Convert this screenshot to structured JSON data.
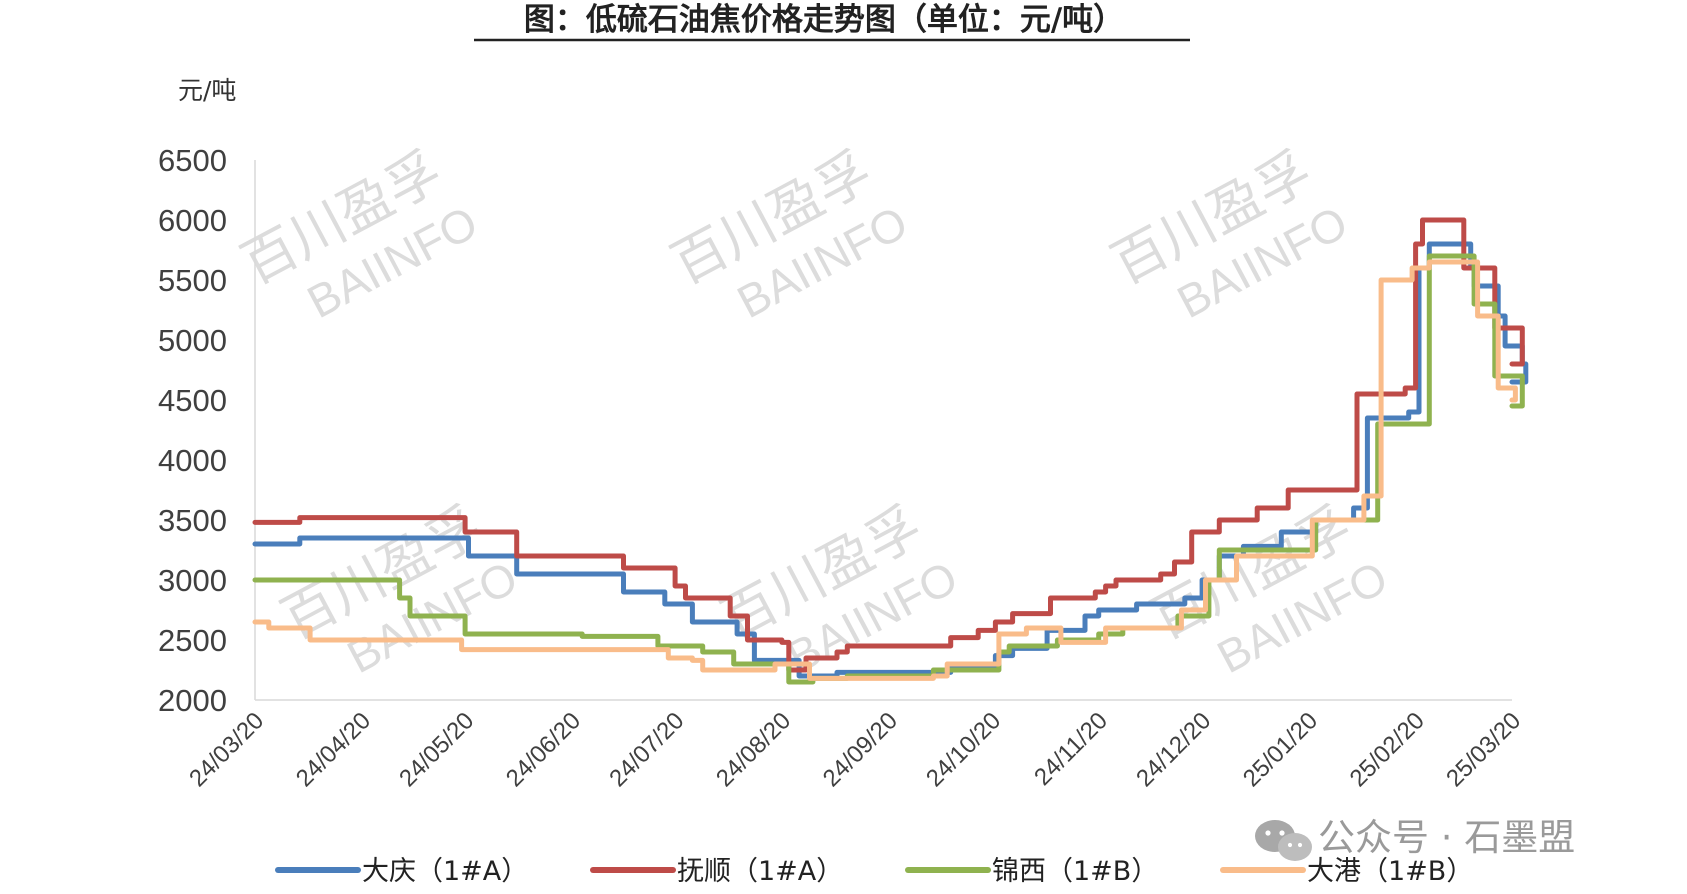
{
  "chart_data": {
    "type": "line",
    "title": "图：低硫石油焦价格走势图（单位：元/吨）",
    "unit_label": "元/吨",
    "ylim": [
      2000,
      6500
    ],
    "yticks": [
      "2000",
      "2500",
      "3000",
      "3500",
      "4000",
      "4500",
      "5000",
      "5500",
      "6000",
      "6500"
    ],
    "xticks": [
      "24/03/20",
      "24/04/20",
      "24/05/20",
      "24/06/20",
      "24/07/20",
      "24/08/20",
      "24/09/20",
      "24/10/20",
      "24/11/20",
      "24/12/20",
      "25/01/20",
      "25/02/20",
      "25/03/20"
    ],
    "grid": false,
    "legend_position": "bottom",
    "series": [
      {
        "name": "大庆（1#A）",
        "color": "#4a7ebb",
        "steps": [
          [
            "2024-03-20",
            3300
          ],
          [
            "2024-04-02",
            3350
          ],
          [
            "2024-05-21",
            3200
          ],
          [
            "2024-06-04",
            3050
          ],
          [
            "2024-07-05",
            2900
          ],
          [
            "2024-07-17",
            2800
          ],
          [
            "2024-07-25",
            2650
          ],
          [
            "2024-08-07",
            2550
          ],
          [
            "2024-08-12",
            2330
          ],
          [
            "2024-08-25",
            2200
          ],
          [
            "2024-09-05",
            2230
          ],
          [
            "2024-10-08",
            2280
          ],
          [
            "2024-10-21",
            2370
          ],
          [
            "2024-10-26",
            2430
          ],
          [
            "2024-11-05",
            2580
          ],
          [
            "2024-11-16",
            2700
          ],
          [
            "2024-11-20",
            2750
          ],
          [
            "2024-12-01",
            2800
          ],
          [
            "2024-12-15",
            2850
          ],
          [
            "2024-12-20",
            3000
          ],
          [
            "2024-12-25",
            3200
          ],
          [
            "2025-01-01",
            3280
          ],
          [
            "2025-01-12",
            3400
          ],
          [
            "2025-01-22",
            3500
          ],
          [
            "2025-02-02",
            3600
          ],
          [
            "2025-02-06",
            4350
          ],
          [
            "2025-02-18",
            4400
          ],
          [
            "2025-02-21",
            5600
          ],
          [
            "2025-02-24",
            5800
          ],
          [
            "2025-03-08",
            5600
          ],
          [
            "2025-03-09",
            5450
          ],
          [
            "2025-03-16",
            5200
          ],
          [
            "2025-03-18",
            4950
          ],
          [
            "2025-03-23",
            4800
          ],
          [
            "2025-03-24",
            4650
          ]
        ]
      },
      {
        "name": "抚顺（1#A）",
        "color": "#be4b48",
        "steps": [
          [
            "2024-03-20",
            3480
          ],
          [
            "2024-04-02",
            3520
          ],
          [
            "2024-05-20",
            3400
          ],
          [
            "2024-06-04",
            3200
          ],
          [
            "2024-07-05",
            3100
          ],
          [
            "2024-07-20",
            2950
          ],
          [
            "2024-07-23",
            2850
          ],
          [
            "2024-08-05",
            2700
          ],
          [
            "2024-08-10",
            2500
          ],
          [
            "2024-08-20",
            2480
          ],
          [
            "2024-08-22",
            2250
          ],
          [
            "2024-08-27",
            2350
          ],
          [
            "2024-09-05",
            2400
          ],
          [
            "2024-09-08",
            2450
          ],
          [
            "2024-10-08",
            2520
          ],
          [
            "2024-10-16",
            2580
          ],
          [
            "2024-10-21",
            2650
          ],
          [
            "2024-10-26",
            2720
          ],
          [
            "2024-11-06",
            2850
          ],
          [
            "2024-11-19",
            2900
          ],
          [
            "2024-11-22",
            2950
          ],
          [
            "2024-11-25",
            3000
          ],
          [
            "2024-12-08",
            3050
          ],
          [
            "2024-12-12",
            3150
          ],
          [
            "2024-12-17",
            3400
          ],
          [
            "2024-12-25",
            3500
          ],
          [
            "2025-01-05",
            3600
          ],
          [
            "2025-01-14",
            3750
          ],
          [
            "2025-02-01",
            3750
          ],
          [
            "2025-02-03",
            4550
          ],
          [
            "2025-02-17",
            4600
          ],
          [
            "2025-02-20",
            5800
          ],
          [
            "2025-02-22",
            6000
          ],
          [
            "2025-03-06",
            5600
          ],
          [
            "2025-03-15",
            5100
          ],
          [
            "2025-03-23",
            4800
          ]
        ]
      },
      {
        "name": "锦西（1#B）",
        "color": "#8fb24f",
        "steps": [
          [
            "2024-03-20",
            3000
          ],
          [
            "2024-05-01",
            2850
          ],
          [
            "2024-05-04",
            2700
          ],
          [
            "2024-05-20",
            2550
          ],
          [
            "2024-06-23",
            2530
          ],
          [
            "2024-07-15",
            2450
          ],
          [
            "2024-07-28",
            2400
          ],
          [
            "2024-08-06",
            2300
          ],
          [
            "2024-08-22",
            2150
          ],
          [
            "2024-08-29",
            2180
          ],
          [
            "2024-09-08",
            2200
          ],
          [
            "2024-10-03",
            2250
          ],
          [
            "2024-10-22",
            2400
          ],
          [
            "2024-10-25",
            2450
          ],
          [
            "2024-11-08",
            2500
          ],
          [
            "2024-11-20",
            2550
          ],
          [
            "2024-11-27",
            2600
          ],
          [
            "2024-12-13",
            2700
          ],
          [
            "2024-12-22",
            3000
          ],
          [
            "2024-12-25",
            3250
          ],
          [
            "2025-01-08",
            3250
          ],
          [
            "2025-01-22",
            3500
          ],
          [
            "2025-02-04",
            3500
          ],
          [
            "2025-02-09",
            4300
          ],
          [
            "2025-02-19",
            4300
          ],
          [
            "2025-02-24",
            5700
          ],
          [
            "2025-03-09",
            5300
          ],
          [
            "2025-03-15",
            4700
          ],
          [
            "2025-03-23",
            4450
          ]
        ]
      },
      {
        "name": "大港（1#B）",
        "color": "#f9bc8a",
        "steps": [
          [
            "2024-03-20",
            2650
          ],
          [
            "2024-03-24",
            2600
          ],
          [
            "2024-04-05",
            2500
          ],
          [
            "2024-05-19",
            2420
          ],
          [
            "2024-06-25",
            2420
          ],
          [
            "2024-07-18",
            2350
          ],
          [
            "2024-07-25",
            2330
          ],
          [
            "2024-07-28",
            2250
          ],
          [
            "2024-08-18",
            2300
          ],
          [
            "2024-08-28",
            2180
          ],
          [
            "2024-09-08",
            2180
          ],
          [
            "2024-10-03",
            2200
          ],
          [
            "2024-10-07",
            2300
          ],
          [
            "2024-10-22",
            2550
          ],
          [
            "2024-10-30",
            2600
          ],
          [
            "2024-11-09",
            2480
          ],
          [
            "2024-11-22",
            2600
          ],
          [
            "2024-12-14",
            2750
          ],
          [
            "2024-12-21",
            3000
          ],
          [
            "2024-12-30",
            3200
          ],
          [
            "2025-01-14",
            3200
          ],
          [
            "2025-01-21",
            3500
          ],
          [
            "2025-02-05",
            3700
          ],
          [
            "2025-02-10",
            5500
          ],
          [
            "2025-02-19",
            5600
          ],
          [
            "2025-02-24",
            5650
          ],
          [
            "2025-03-10",
            5200
          ],
          [
            "2025-03-16",
            4600
          ],
          [
            "2025-03-21",
            4500
          ]
        ]
      }
    ]
  },
  "watermark": {
    "cn": "百川盈孚",
    "en": "BAIINFO"
  },
  "wechat_caption": "公众号 · 石墨盟",
  "icons": {
    "wechat": "wechat-icon"
  }
}
